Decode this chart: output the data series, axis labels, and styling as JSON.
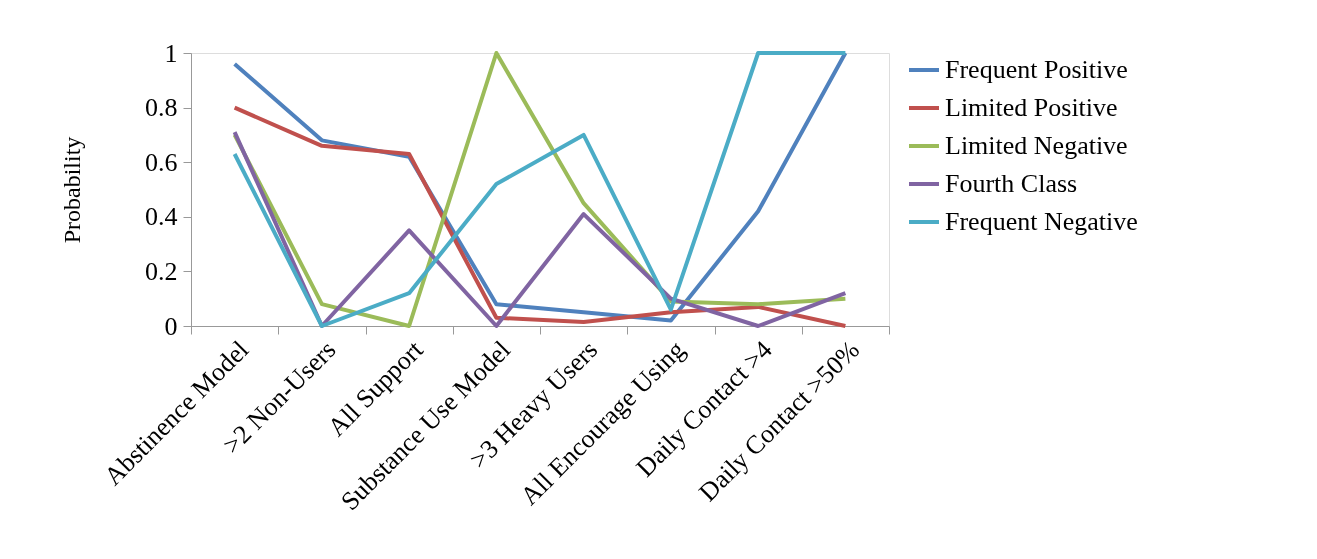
{
  "chart_data": {
    "type": "line",
    "ylabel": "Probability",
    "categories": [
      "Abstinence Model",
      ">2 Non-Users",
      "All Support",
      "Substance Use Model",
      ">3 Heavy Users",
      "All Encourage Using",
      "Daily Contact >4",
      "Daily Contact >50%"
    ],
    "ylim": [
      0,
      1
    ],
    "yticks": [
      0,
      0.2,
      0.4,
      0.6,
      0.8,
      1
    ],
    "grid": false,
    "legend": "right",
    "marker": "none",
    "line_style": "solid",
    "series": [
      {
        "name": "Frequent Positive",
        "color": "#4f81bd",
        "values": [
          0.96,
          0.68,
          0.62,
          0.08,
          0.05,
          0.02,
          0.42,
          1.0
        ]
      },
      {
        "name": "Limited Positive",
        "color": "#c0504d",
        "values": [
          0.8,
          0.66,
          0.63,
          0.03,
          0.015,
          0.05,
          0.07,
          0.0
        ]
      },
      {
        "name": "Limited Negative",
        "color": "#9bbb59",
        "values": [
          0.7,
          0.08,
          0.0,
          1.0,
          0.45,
          0.09,
          0.08,
          0.1
        ]
      },
      {
        "name": "Fourth Class",
        "color": "#8064a2",
        "values": [
          0.71,
          0.0,
          0.35,
          0.0,
          0.41,
          0.1,
          0.0,
          0.12
        ]
      },
      {
        "name": "Frequent Negative",
        "color": "#4bacc6",
        "values": [
          0.63,
          0.0,
          0.12,
          0.52,
          0.7,
          0.06,
          1.0,
          1.0
        ]
      }
    ]
  }
}
